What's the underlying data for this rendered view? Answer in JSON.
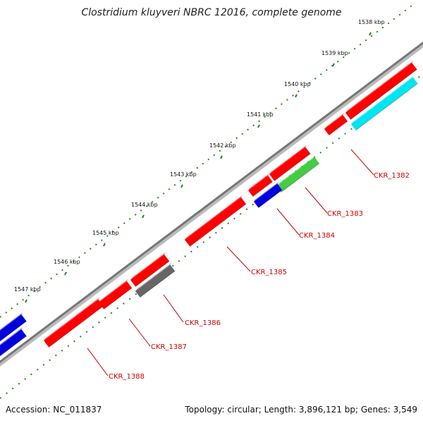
{
  "title": "Clostridium kluyveri NBRC 12016, complete genome",
  "accession": "Accession: NC_011837",
  "summary": "Topology: circular; Length: 3,896,121 bp; Genes: 3,549",
  "colors": {
    "red": "#ff0000",
    "blue": "#0000dd",
    "cyan": "#00e5f0",
    "green": "#44cc44",
    "gray": "#666666",
    "backbone": "#888888",
    "tick": "#228822",
    "label": "#cc0000"
  },
  "scale_labels": [
    {
      "text": "1538 kbp"
    },
    {
      "text": "1539 kbp"
    },
    {
      "text": "1540 kbp"
    },
    {
      "text": "1541 kbp"
    },
    {
      "text": "1542 kbp"
    },
    {
      "text": "1543 kbp"
    },
    {
      "text": "1544 kbp"
    },
    {
      "text": "1545 kbp"
    },
    {
      "text": "1546 kbp"
    },
    {
      "text": "1547 kbp"
    }
  ],
  "gene_labels": [
    {
      "text": "CKR_1382"
    },
    {
      "text": "CKR_1383"
    },
    {
      "text": "CKR_1384"
    },
    {
      "text": "CKR_1385"
    },
    {
      "text": "CKR_1386"
    },
    {
      "text": "CKR_1387"
    },
    {
      "text": "CKR_1388"
    }
  ]
}
